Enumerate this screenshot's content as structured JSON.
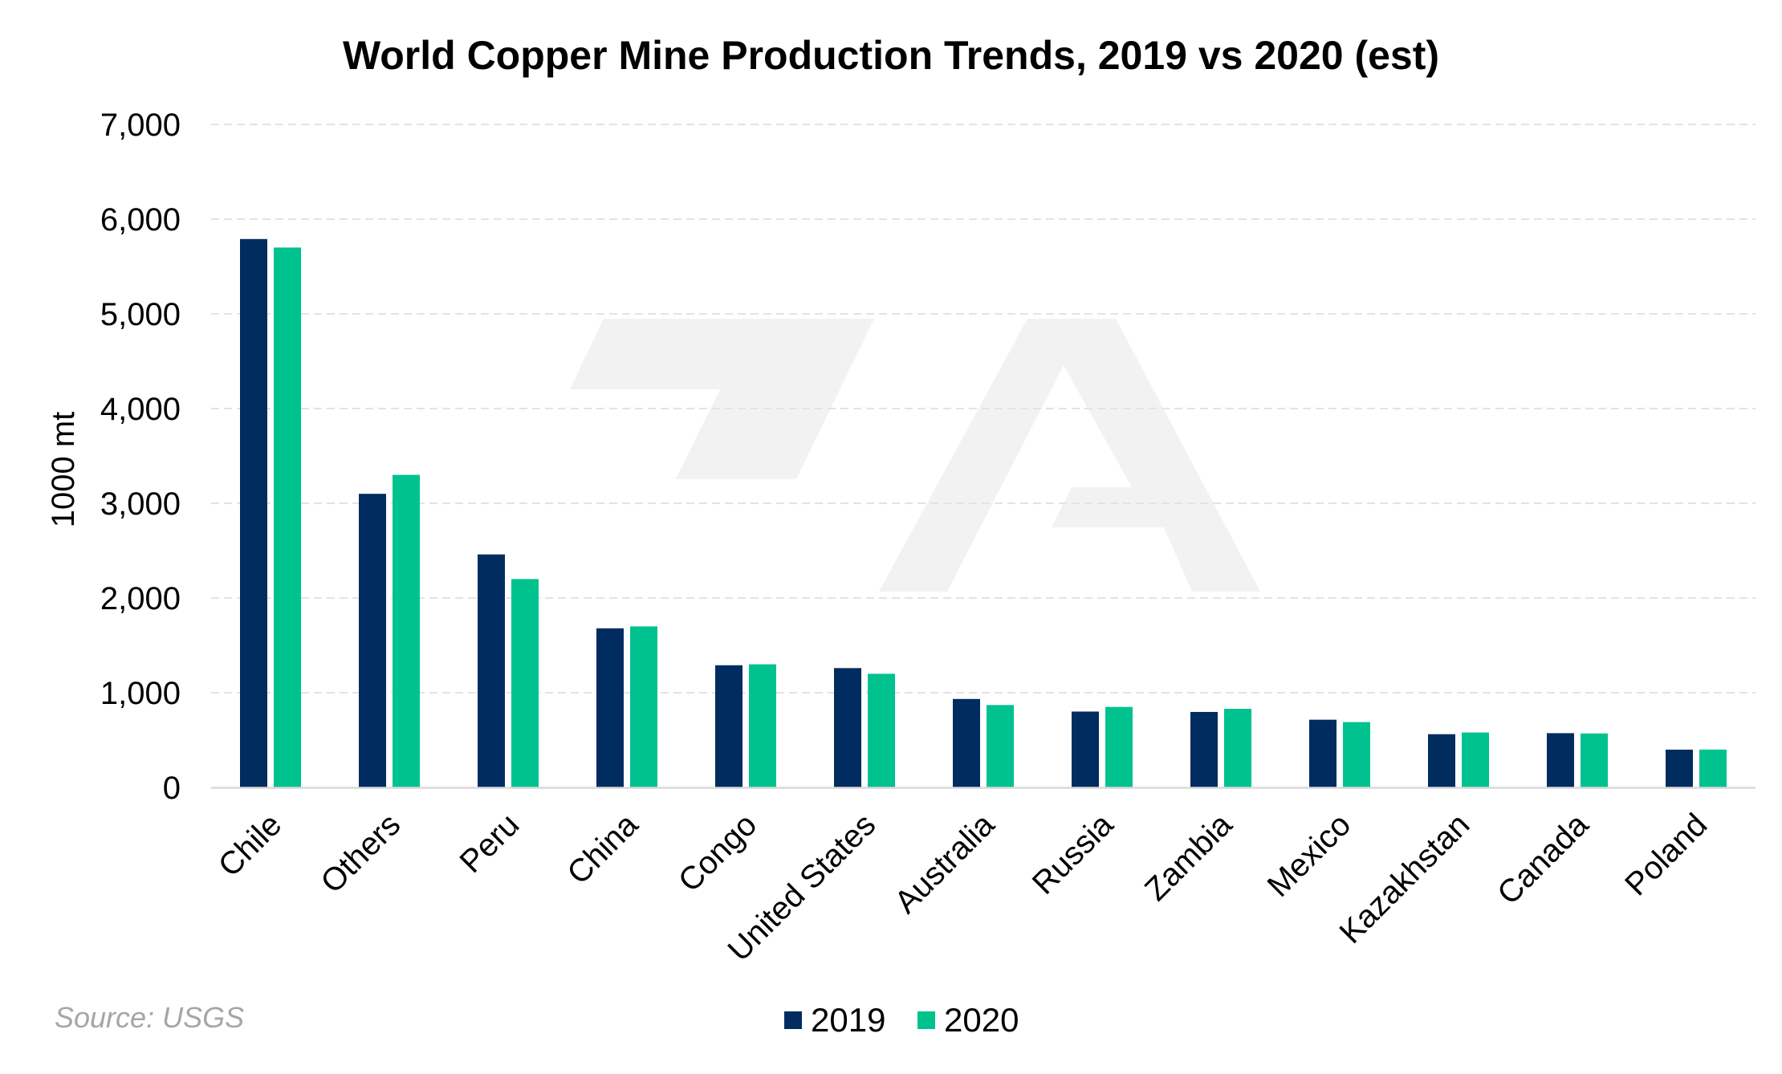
{
  "chart_data": {
    "type": "bar",
    "title": "World Copper Mine Production Trends, 2019 vs 2020 (est)",
    "xlabel": "",
    "ylabel": "1000 mt",
    "ylim": [
      0,
      7000
    ],
    "yticks": [
      0,
      1000,
      2000,
      3000,
      4000,
      5000,
      6000,
      7000
    ],
    "ytick_labels": [
      "0",
      "1,000",
      "2,000",
      "3,000",
      "4,000",
      "5,000",
      "6,000",
      "7,000"
    ],
    "grid": true,
    "legend_position": "bottom",
    "categories": [
      "Chile",
      "Others",
      "Peru",
      "China",
      "Congo",
      "United States",
      "Australia",
      "Russia",
      "Zambia",
      "Mexico",
      "Kazakhstan",
      "Canada",
      "Poland"
    ],
    "series": [
      {
        "name": "2019",
        "color": "#002c5f",
        "values": [
          5790,
          3100,
          2460,
          1680,
          1290,
          1260,
          934,
          801,
          797,
          715,
          562,
          573,
          399
        ]
      },
      {
        "name": "2020",
        "color": "#00c28f",
        "values": [
          5700,
          3300,
          2200,
          1700,
          1300,
          1200,
          870,
          850,
          830,
          690,
          580,
          570,
          400
        ]
      }
    ],
    "source": "Source: USGS"
  }
}
